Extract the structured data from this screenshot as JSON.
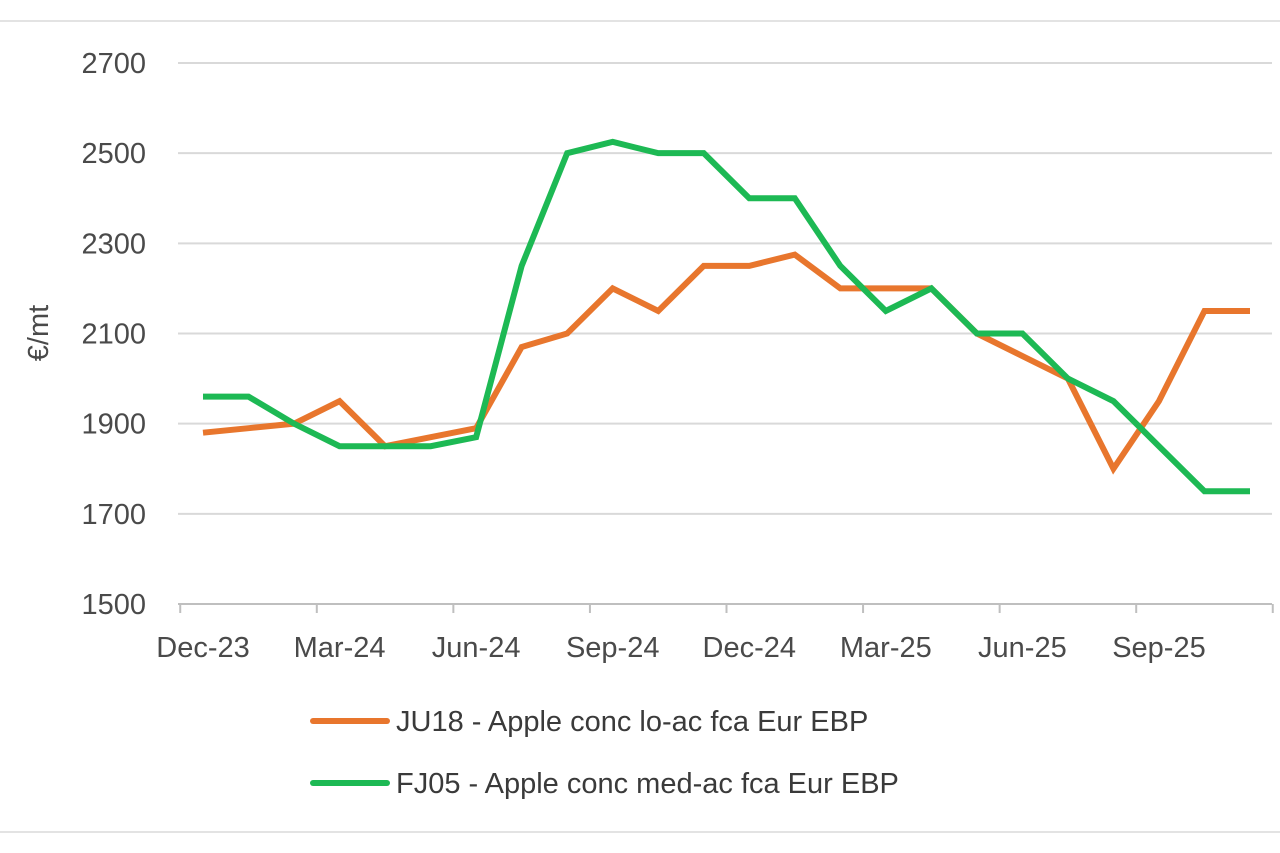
{
  "chart_data": {
    "type": "line",
    "title": "",
    "xlabel": "",
    "ylabel": "€/mt",
    "ylim": [
      1500,
      2700
    ],
    "yticks": [
      1500,
      1700,
      1900,
      2100,
      2300,
      2500,
      2700
    ],
    "ytick_labels": [
      "1500",
      "1700",
      "1900",
      "2100",
      "2300",
      "2500",
      "2700"
    ],
    "x_tick_labels": [
      "Dec-23",
      "Mar-24",
      "Jun-24",
      "Sep-24",
      "Dec-24",
      "Mar-25",
      "Jun-25",
      "Sep-25"
    ],
    "x_tick_months": [
      0,
      3,
      6,
      9,
      12,
      15,
      18,
      21
    ],
    "x_range_months": [
      0,
      23
    ],
    "grid": true,
    "legend_position": "bottom",
    "series": [
      {
        "name": "JU18 - Apple conc lo-ac fca Eur EBP",
        "color": "#E8762D",
        "x_months": [
          0,
          1,
          2,
          3,
          4,
          5,
          6,
          7,
          8,
          9,
          10,
          11,
          12,
          13,
          14,
          15,
          16,
          17,
          18,
          19,
          20,
          21,
          22,
          23
        ],
        "values": [
          1880,
          1890,
          1900,
          1950,
          1850,
          1870,
          1890,
          2070,
          2100,
          2200,
          2150,
          2250,
          2250,
          2275,
          2200,
          2200,
          2200,
          2100,
          2050,
          2000,
          1800,
          1950,
          2150,
          2150
        ]
      },
      {
        "name": "FJ05 - Apple conc med-ac fca Eur EBP",
        "color": "#1DB954",
        "x_months": [
          0,
          1,
          2,
          3,
          4,
          5,
          6,
          7,
          8,
          9,
          10,
          11,
          12,
          13,
          14,
          15,
          16,
          17,
          18,
          19,
          20,
          21,
          22,
          23
        ],
        "values": [
          1960,
          1960,
          1900,
          1850,
          1850,
          1850,
          1870,
          2250,
          2500,
          2525,
          2500,
          2500,
          2400,
          2400,
          2250,
          2150,
          2200,
          2100,
          2100,
          2000,
          1950,
          1850,
          1750,
          1750
        ]
      }
    ]
  }
}
